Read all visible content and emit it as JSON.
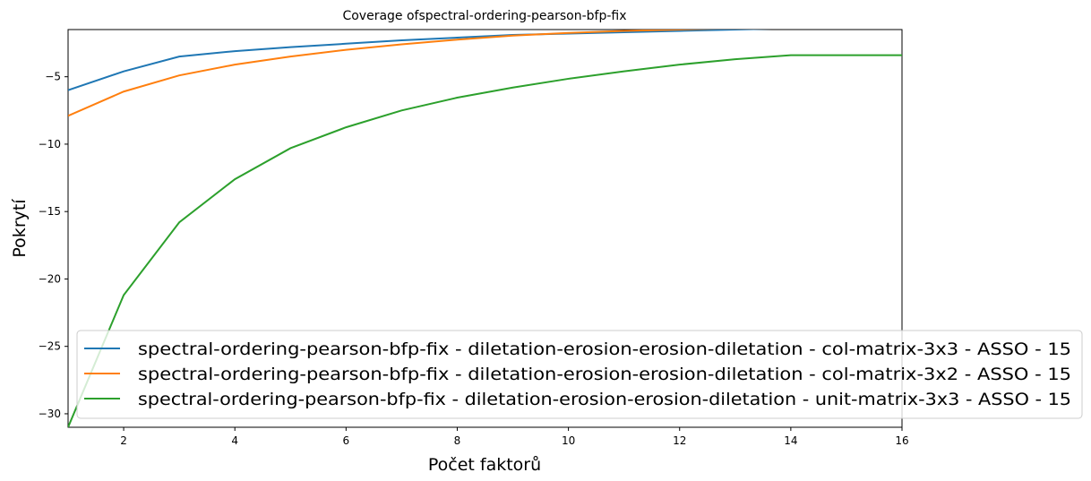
{
  "chart_data": {
    "type": "line",
    "title": "Coverage ofspectral-ordering-pearson-bfp-fix",
    "xlabel": "Počet faktorů",
    "ylabel": "Pokrytí",
    "xlim": [
      1,
      16
    ],
    "ylim": [
      -31,
      -1.5
    ],
    "x_ticks": [
      2,
      4,
      6,
      8,
      10,
      12,
      14,
      16
    ],
    "y_ticks": [
      -30,
      -25,
      -20,
      -15,
      -10,
      -5
    ],
    "grid": false,
    "legend_position": "lower-right",
    "x": [
      1,
      2,
      3,
      4,
      5,
      6,
      7,
      8,
      9,
      10,
      11,
      12,
      13,
      14,
      15,
      16
    ],
    "series": [
      {
        "name": "spectral-ordering-pearson-bfp-fix - diletation-erosion-erosion-diletation - col-matrix-3x3 - ASSO - 15",
        "color": "#1f77b4",
        "values": [
          -6.0,
          -4.6,
          -3.5,
          -3.1,
          -2.8,
          -2.55,
          -2.3,
          -2.1,
          -1.9,
          -1.8,
          -1.7,
          -1.6,
          -1.5,
          -1.4,
          -1.4,
          -1.4
        ]
      },
      {
        "name": "spectral-ordering-pearson-bfp-fix - diletation-erosion-erosion-diletation - col-matrix-3x2 - ASSO - 15",
        "color": "#ff7f0e",
        "values": [
          -7.9,
          -6.1,
          -4.9,
          -4.1,
          -3.5,
          -3.0,
          -2.6,
          -2.25,
          -1.95,
          -1.75,
          -1.6,
          -1.5,
          -1.4,
          -1.35,
          -1.3,
          -1.3
        ]
      },
      {
        "name": "spectral-ordering-pearson-bfp-fix - diletation-erosion-erosion-diletation - unit-matrix-3x3 - ASSO - 15",
        "color": "#2ca02c",
        "values": [
          -31.0,
          -21.2,
          -15.8,
          -12.6,
          -10.3,
          -8.75,
          -7.5,
          -6.55,
          -5.8,
          -5.15,
          -4.6,
          -4.1,
          -3.7,
          -3.4,
          -3.4,
          -3.4
        ]
      }
    ]
  }
}
